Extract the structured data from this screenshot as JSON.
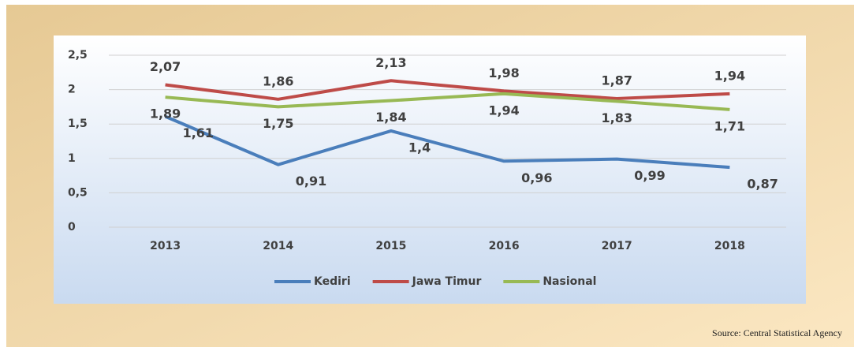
{
  "chart_data": {
    "type": "line",
    "categories": [
      "2013",
      "2014",
      "2015",
      "2016",
      "2017",
      "2018"
    ],
    "series": [
      {
        "name": "Kediri",
        "color": "#4a7ebb",
        "values": [
          1.61,
          0.91,
          1.4,
          0.96,
          0.99,
          0.87
        ],
        "value_labels": [
          "1,61",
          "0,91",
          "1,4",
          "0,96",
          "0,99",
          "0,87"
        ]
      },
      {
        "name": "Jawa Timur",
        "color": "#be4b48",
        "values": [
          2.07,
          1.86,
          2.13,
          1.98,
          1.87,
          1.94
        ],
        "value_labels": [
          "2,07",
          "1,86",
          "2,13",
          "1,98",
          "1,87",
          "1,94"
        ]
      },
      {
        "name": "Nasional",
        "color": "#98b954",
        "values": [
          1.89,
          1.75,
          1.84,
          1.94,
          1.83,
          1.71
        ],
        "value_labels": [
          "1,89",
          "1,75",
          "1,84",
          "1,94",
          "1,83",
          "1,71"
        ]
      }
    ],
    "ylim": [
      0,
      2.5
    ],
    "yticks": [
      0,
      {
        "value": 0.5,
        "label": "0,5"
      },
      1,
      {
        "value": 1.5,
        "label": "1,5"
      },
      2,
      {
        "value": 2.5,
        "label": "2,5"
      }
    ],
    "grid": true,
    "legend": "bottom",
    "source": "Source: Central Statistical Agency"
  }
}
